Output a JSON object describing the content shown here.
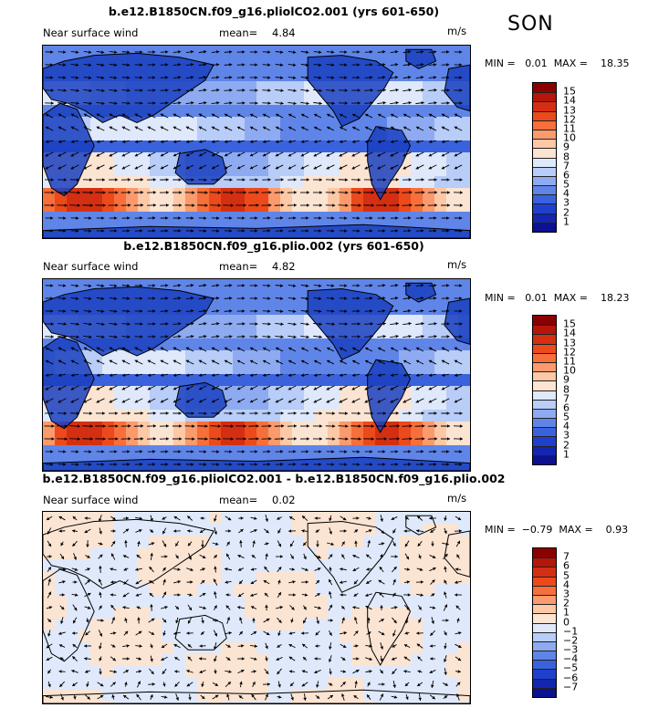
{
  "season": "SON",
  "panels": [
    {
      "title": "b.e12.B1850CN.f09_g16.pliolCO2.001 (yrs 601-650)",
      "variable": "Near surface wind",
      "mean_label": "mean=",
      "mean_value": "4.84",
      "units": "m/s",
      "min_label": "MIN =",
      "min_value": "0.01",
      "max_label": "MAX =",
      "max_value": "18.35",
      "colorbar_labels": [
        "15",
        "14",
        "13",
        "12",
        "11",
        "10",
        "9",
        "8",
        "7",
        "6",
        "5",
        "4",
        "3",
        "2",
        "1"
      ],
      "colorbar_colors": [
        "#8b0000",
        "#b5160a",
        "#d42f12",
        "#ec4a1c",
        "#f76f3a",
        "#fb9a6c",
        "#fdc8a6",
        "#fbe4d2",
        "#dfe9fb",
        "#b8cdf7",
        "#8eabf1",
        "#5f85e8",
        "#3a62dd",
        "#1f40cc",
        "#1226b0",
        "#0b1190"
      ],
      "map_style": "wind-speed"
    },
    {
      "title": "b.e12.B1850CN.f09_g16.plio.002 (yrs 601-650)",
      "variable": "Near surface wind",
      "mean_label": "mean=",
      "mean_value": "4.82",
      "units": "m/s",
      "min_label": "MIN =",
      "min_value": "0.01",
      "max_label": "MAX =",
      "max_value": "18.23",
      "colorbar_labels": [
        "15",
        "14",
        "13",
        "12",
        "11",
        "10",
        "9",
        "8",
        "7",
        "6",
        "5",
        "4",
        "3",
        "2",
        "1"
      ],
      "colorbar_colors": [
        "#8b0000",
        "#b5160a",
        "#d42f12",
        "#ec4a1c",
        "#f76f3a",
        "#fb9a6c",
        "#fdc8a6",
        "#fbe4d2",
        "#dfe9fb",
        "#b8cdf7",
        "#8eabf1",
        "#5f85e8",
        "#3a62dd",
        "#1f40cc",
        "#1226b0",
        "#0b1190"
      ],
      "map_style": "wind-speed"
    },
    {
      "title": "b.e12.B1850CN.f09_g16.pliolCO2.001 - b.e12.B1850CN.f09_g16.plio.002",
      "variable": "Near surface wind",
      "mean_label": "mean=",
      "mean_value": "0.02",
      "units": "m/s",
      "min_label": "MIN =",
      "min_value": "−0.79",
      "max_label": "MAX =",
      "max_value": "0.93",
      "colorbar_labels": [
        "7",
        "6",
        "5",
        "4",
        "3",
        "2",
        "1",
        "0",
        "−1",
        "−2",
        "−3",
        "−4",
        "−5",
        "−6",
        "−7"
      ],
      "colorbar_colors": [
        "#8b0000",
        "#b5160a",
        "#d42f12",
        "#ec4a1c",
        "#f76f3a",
        "#fb9a6c",
        "#fdc8a6",
        "#fbe4d2",
        "#dfe9fb",
        "#b8cdf7",
        "#8eabf1",
        "#5f85e8",
        "#3a62dd",
        "#1f40cc",
        "#1226b0",
        "#0b1190"
      ],
      "map_style": "difference"
    }
  ]
}
